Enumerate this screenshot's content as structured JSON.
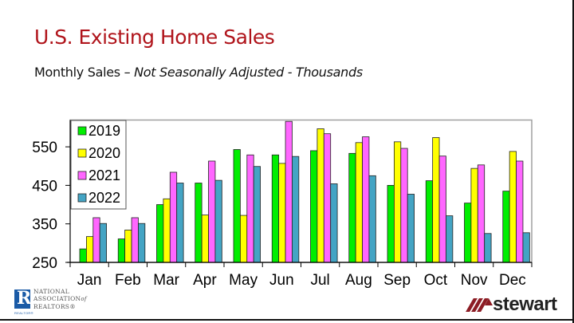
{
  "slide": {
    "title": "U.S. Existing Home Sales",
    "subtitle_plain": "Monthly Sales – ",
    "subtitle_italic": "Not Seasonally Adjusted - Thousands",
    "title_color": "#b0141b"
  },
  "logos": {
    "nar": {
      "mark": "R",
      "line1": "NATIONAL",
      "line2": "ASSOCIATION",
      "line2_suffix": "of",
      "line3": "REALTORS®",
      "tag": "REALTOR®"
    },
    "stewart": {
      "word": "stewart"
    }
  },
  "chart_data": {
    "type": "bar",
    "title": "U.S. Existing Home Sales",
    "subtitle": "Monthly Sales – Not Seasonally Adjusted - Thousands",
    "xlabel": "",
    "ylabel": "",
    "ylim": [
      250,
      620
    ],
    "yticks": [
      250,
      350,
      450,
      550
    ],
    "grid": false,
    "legend_position": "upper-left-inside",
    "categories": [
      "Jan",
      "Feb",
      "Mar",
      "Apr",
      "May",
      "Jun",
      "Jul",
      "Aug",
      "Sep",
      "Oct",
      "Nov",
      "Dec"
    ],
    "series": [
      {
        "name": "2019",
        "color": "#00ee00",
        "values": [
          285,
          311,
          400,
          456,
          543,
          529,
          540,
          533,
          450,
          462,
          404,
          435
        ]
      },
      {
        "name": "2020",
        "color": "#ffff00",
        "values": [
          317,
          334,
          415,
          373,
          372,
          507,
          597,
          561,
          563,
          574,
          494,
          538
        ]
      },
      {
        "name": "2021",
        "color": "#ff66ff",
        "values": [
          366,
          366,
          484,
          513,
          529,
          616,
          584,
          576,
          546,
          526,
          503,
          513
        ]
      },
      {
        "name": "2022",
        "color": "#44a4c4",
        "values": [
          351,
          351,
          456,
          463,
          499,
          525,
          454,
          475,
          427,
          371,
          325,
          327
        ]
      }
    ]
  }
}
